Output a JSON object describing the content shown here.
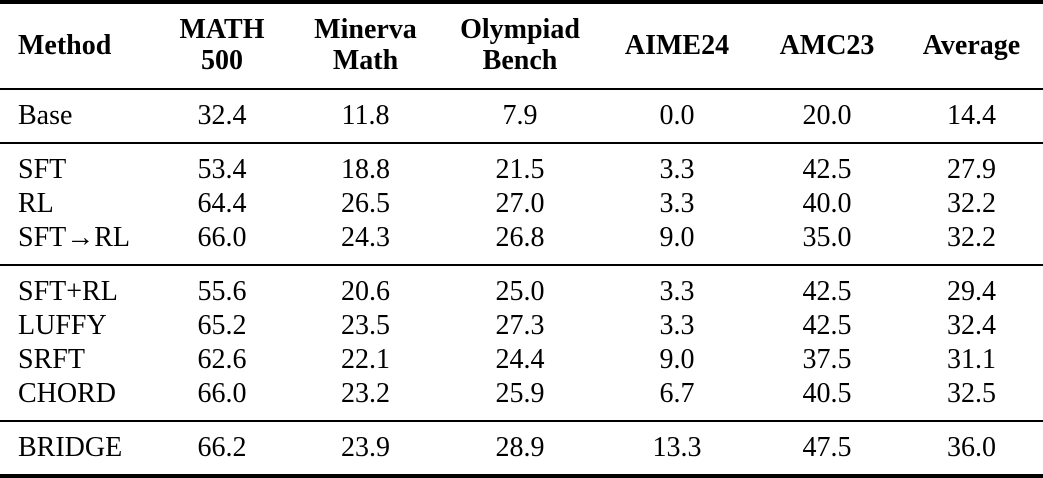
{
  "page": {
    "background": "#ffffff",
    "text_color": "#000000",
    "rule_color": "#000000"
  },
  "table": {
    "columns": [
      "Method",
      "MATH\n500",
      "Minerva\nMath",
      "Olympiad\nBench",
      "AIME24",
      "AMC23",
      "Average"
    ],
    "groups": [
      {
        "rows": [
          {
            "method": "Base",
            "values": [
              "32.4",
              "11.8",
              "7.9",
              "0.0",
              "20.0",
              "14.4"
            ]
          }
        ]
      },
      {
        "rows": [
          {
            "method": "SFT",
            "values": [
              "53.4",
              "18.8",
              "21.5",
              "3.3",
              "42.5",
              "27.9"
            ]
          },
          {
            "method": "RL",
            "values": [
              "64.4",
              "26.5",
              "27.0",
              "3.3",
              "40.0",
              "32.2"
            ]
          },
          {
            "method": "SFT→RL",
            "values": [
              "66.0",
              "24.3",
              "26.8",
              "9.0",
              "35.0",
              "32.2"
            ]
          }
        ]
      },
      {
        "rows": [
          {
            "method": "SFT+RL",
            "values": [
              "55.6",
              "20.6",
              "25.0",
              "3.3",
              "42.5",
              "29.4"
            ]
          },
          {
            "method": "LUFFY",
            "values": [
              "65.2",
              "23.5",
              "27.3",
              "3.3",
              "42.5",
              "32.4"
            ]
          },
          {
            "method": "SRFT",
            "values": [
              "62.6",
              "22.1",
              "24.4",
              "9.0",
              "37.5",
              "31.1"
            ]
          },
          {
            "method": "CHORD",
            "values": [
              "66.0",
              "23.2",
              "25.9",
              "6.7",
              "40.5",
              "32.5"
            ]
          }
        ]
      },
      {
        "rows": [
          {
            "method": "BRIDGE",
            "values": [
              "66.2",
              "23.9",
              "28.9",
              "13.3",
              "47.5",
              "36.0"
            ]
          }
        ]
      }
    ]
  },
  "chart_data": {
    "type": "table",
    "columns": [
      "Method",
      "MATH 500",
      "Minerva Math",
      "Olympiad Bench",
      "AIME24",
      "AMC23",
      "Average"
    ],
    "rows": [
      [
        "Base",
        32.4,
        11.8,
        7.9,
        0.0,
        20.0,
        14.4
      ],
      [
        "SFT",
        53.4,
        18.8,
        21.5,
        3.3,
        42.5,
        27.9
      ],
      [
        "RL",
        64.4,
        26.5,
        27.0,
        3.3,
        40.0,
        32.2
      ],
      [
        "SFT→RL",
        66.0,
        24.3,
        26.8,
        9.0,
        35.0,
        32.2
      ],
      [
        "SFT+RL",
        55.6,
        20.6,
        25.0,
        3.3,
        42.5,
        29.4
      ],
      [
        "LUFFY",
        65.2,
        23.5,
        27.3,
        3.3,
        42.5,
        32.4
      ],
      [
        "SRFT",
        62.6,
        22.1,
        24.4,
        9.0,
        37.5,
        31.1
      ],
      [
        "CHORD",
        66.0,
        23.2,
        25.9,
        6.7,
        40.5,
        32.5
      ],
      [
        "BRIDGE",
        66.2,
        23.9,
        28.9,
        13.3,
        47.5,
        36.0
      ]
    ]
  }
}
